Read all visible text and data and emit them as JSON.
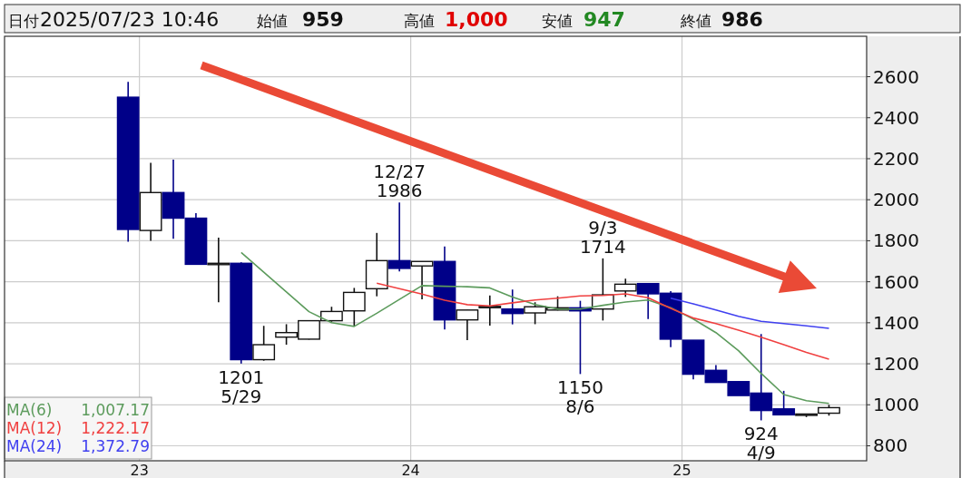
{
  "chart_data": {
    "type": "candlestick",
    "x": [
      "2022-12",
      "2023-01",
      "2023-02",
      "2023-03",
      "2023-04",
      "2023-05",
      "2023-06",
      "2023-07",
      "2023-08",
      "2023-09",
      "2023-10",
      "2023-11",
      "2023-12",
      "2024-01",
      "2024-02",
      "2024-03",
      "2024-04",
      "2024-05",
      "2024-06",
      "2024-07",
      "2024-08",
      "2024-09",
      "2024-10",
      "2024-11",
      "2024-12",
      "2025-01",
      "2025-02",
      "2025-03",
      "2025-04",
      "2025-05",
      "2025-06",
      "2025-07"
    ],
    "ohlc": [
      [
        2500,
        2575,
        1795,
        1855
      ],
      [
        1850,
        2180,
        1800,
        2035
      ],
      [
        2035,
        2195,
        1810,
        1910
      ],
      [
        1910,
        1935,
        1685,
        1685
      ],
      [
        1690,
        1815,
        1500,
        1690
      ],
      [
        1690,
        1695,
        1201,
        1220
      ],
      [
        1220,
        1385,
        1215,
        1293
      ],
      [
        1330,
        1393,
        1293,
        1352
      ],
      [
        1320,
        1412,
        1318,
        1410
      ],
      [
        1410,
        1478,
        1405,
        1455
      ],
      [
        1458,
        1570,
        1382,
        1548
      ],
      [
        1566,
        1838,
        1529,
        1703
      ],
      [
        1703,
        1986,
        1650,
        1665
      ],
      [
        1677,
        1700,
        1514,
        1699
      ],
      [
        1699,
        1772,
        1367,
        1414
      ],
      [
        1414,
        1462,
        1315,
        1462
      ],
      [
        1480,
        1533,
        1386,
        1480
      ],
      [
        1467,
        1562,
        1392,
        1445
      ],
      [
        1448,
        1500,
        1393,
        1478
      ],
      [
        1462,
        1529,
        1460,
        1473
      ],
      [
        1473,
        1507,
        1150,
        1458
      ],
      [
        1467,
        1714,
        1411,
        1536
      ],
      [
        1555,
        1615,
        1526,
        1588
      ],
      [
        1591,
        1591,
        1418,
        1541
      ],
      [
        1544,
        1554,
        1281,
        1320
      ],
      [
        1315,
        1315,
        1124,
        1149
      ],
      [
        1168,
        1194,
        1109,
        1109
      ],
      [
        1113,
        1113,
        1045,
        1045
      ],
      [
        1057,
        1345,
        924,
        972
      ],
      [
        980,
        1068,
        951,
        951
      ],
      [
        951,
        955,
        940,
        955
      ],
      [
        959,
        1000,
        947,
        986
      ]
    ],
    "colors": [
      "#000088",
      "#ffffff",
      "#000088",
      "#000088",
      "#ffffff",
      "#000088",
      "#ffffff",
      "#ffffff",
      "#ffffff",
      "#ffffff",
      "#ffffff",
      "#ffffff",
      "#000088",
      "#ffffff",
      "#000088",
      "#ffffff",
      "#ffffff",
      "#000088",
      "#ffffff",
      "#ffffff",
      "#000088",
      "#ffffff",
      "#ffffff",
      "#000088",
      "#000088",
      "#000088",
      "#000088",
      "#000088",
      "#000088",
      "#000088",
      "#ffffff",
      "#ffffff"
    ],
    "series": [
      {
        "name": "MA(6)",
        "type": "line",
        "color": "#5c9b5c",
        "x": [
          "2023-05",
          "2023-06",
          "2023-07",
          "2023-08",
          "2023-09",
          "2023-10",
          "2023-11",
          "2023-12",
          "2024-01",
          "2024-02",
          "2024-03",
          "2024-04",
          "2024-05",
          "2024-06",
          "2024-07",
          "2024-08",
          "2024-09",
          "2024-10",
          "2024-11",
          "2024-12",
          "2025-01",
          "2025-02",
          "2025-03",
          "2025-04",
          "2025-05",
          "2025-06",
          "2025-07"
        ],
        "values": [
          1743,
          1646,
          1550,
          1454,
          1400,
          1382,
          1446,
          1514,
          1581,
          1578,
          1576,
          1570,
          1526,
          1489,
          1467,
          1467,
          1485,
          1501,
          1511,
          1473,
          1418,
          1352,
          1264,
          1153,
          1050,
          1020,
          1007.17
        ]
      },
      {
        "name": "MA(12)",
        "type": "line",
        "color": "#f04040",
        "x": [
          "2023-11",
          "2023-12",
          "2024-01",
          "2024-02",
          "2024-03",
          "2024-04",
          "2024-05",
          "2024-06",
          "2024-07",
          "2024-08",
          "2024-09",
          "2024-10",
          "2024-11",
          "2024-12",
          "2025-01",
          "2025-02",
          "2025-03",
          "2025-04",
          "2025-05",
          "2025-06",
          "2025-07"
        ],
        "values": [
          1593,
          1566,
          1540,
          1510,
          1488,
          1482,
          1497,
          1511,
          1520,
          1531,
          1533,
          1541,
          1522,
          1470,
          1423,
          1396,
          1364,
          1330,
          1293,
          1256,
          1222.17
        ]
      },
      {
        "name": "MA(24)",
        "type": "line",
        "color": "#4040f0",
        "x": [
          "2024-12",
          "2025-01",
          "2025-02",
          "2025-03",
          "2025-04",
          "2025-05",
          "2025-06",
          "2025-07"
        ],
        "values": [
          1520,
          1492,
          1462,
          1431,
          1407,
          1396,
          1385,
          1372.79
        ]
      }
    ],
    "xlim": [
      "2022-06-17",
      "2025-08-21"
    ],
    "xticks": [
      {
        "value": "2022-12-16",
        "label": "23"
      },
      {
        "value": "2023-12-16",
        "label": "24"
      },
      {
        "value": "2024-12-16",
        "label": "25"
      }
    ],
    "ylim": [
      727,
      2797
    ],
    "yticks": [
      800,
      1000,
      1200,
      1400,
      1600,
      1800,
      2000,
      2200,
      2400,
      2600
    ],
    "grid": true,
    "legend": "bottom left",
    "annotations": [
      "日付",
      "2025/07/23 10:46",
      "始値",
      "959",
      "高値",
      "1,000",
      "安値",
      "947",
      "終値",
      "986",
      "1,007.17",
      "1,222.17",
      "1,372.79",
      {
        "text": "12/27",
        "x": "2023-12",
        "y": 1986
      },
      {
        "text": "1986",
        "x": "2023-12",
        "y": 1986
      },
      {
        "text": "1201",
        "x": "2023-05",
        "y": 1201
      },
      {
        "text": "5/29",
        "x": "2023-05",
        "y": 1201
      },
      {
        "text": "9/3",
        "x": "2024-09",
        "y": 1714
      },
      {
        "text": "1714",
        "x": "2024-09",
        "y": 1714
      },
      {
        "text": "1150",
        "x": "2024-08",
        "y": 1150
      },
      {
        "text": "8/6",
        "x": "2024-08",
        "y": 1150
      },
      {
        "text": "924",
        "x": "2025-04",
        "y": 924
      },
      {
        "text": "4/9",
        "x": "2025-04",
        "y": 924
      }
    ]
  }
}
